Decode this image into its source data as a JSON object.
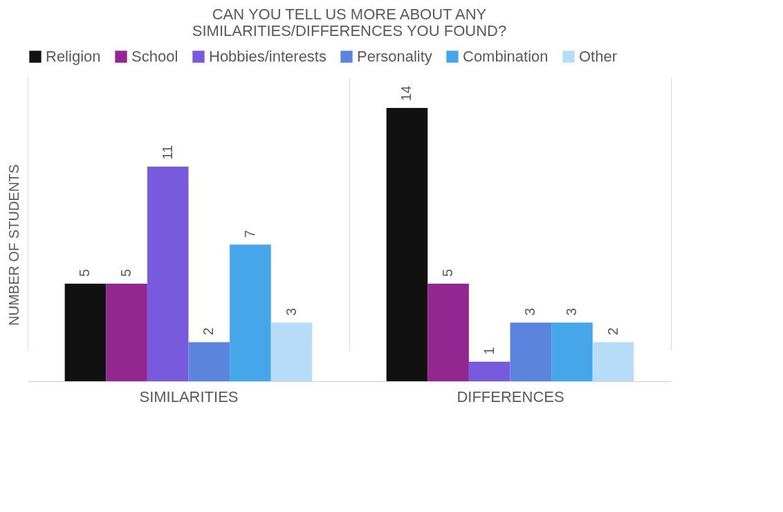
{
  "chart_data": {
    "type": "bar",
    "title": "CAN YOU TELL US MORE ABOUT ANY SIMILARITIES/DIFFERENCES YOU FOUND?",
    "ylabel": "NUMBER OF STUDENTS",
    "categories": [
      "SIMILARITIES",
      "DIFFERENCES"
    ],
    "series": [
      {
        "name": "Religion",
        "color": "#111111",
        "values": [
          5,
          14
        ]
      },
      {
        "name": "School",
        "color": "#92278f",
        "values": [
          5,
          5
        ]
      },
      {
        "name": "Hobbies/interests",
        "color": "#775bdc",
        "values": [
          11,
          1
        ]
      },
      {
        "name": "Personality",
        "color": "#5b84dc",
        "values": [
          2,
          3
        ]
      },
      {
        "name": "Combination",
        "color": "#45a7ea",
        "values": [
          7,
          3
        ]
      },
      {
        "name": "Other",
        "color": "#b7dcf7",
        "values": [
          3,
          2
        ]
      }
    ],
    "data_labels": true,
    "legend": "top",
    "grid": "x",
    "tick_labels": "x"
  }
}
